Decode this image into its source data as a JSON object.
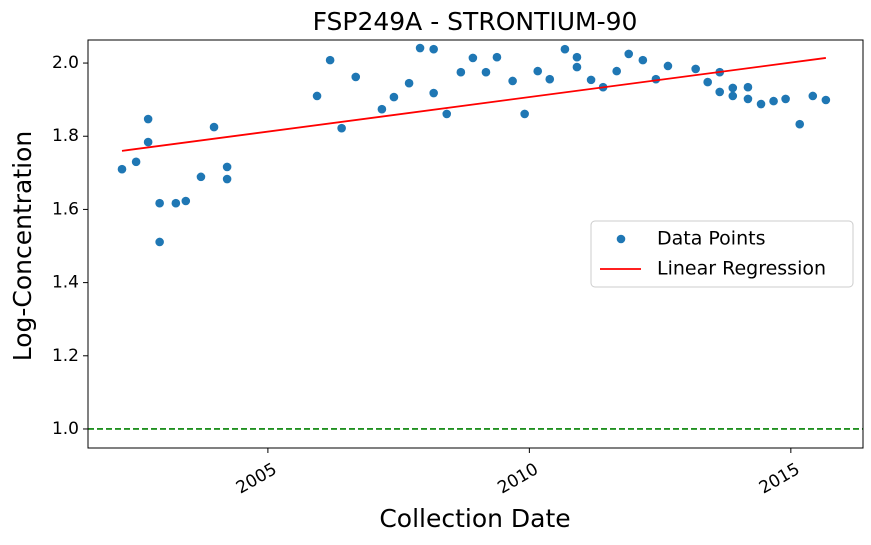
{
  "chart_data": {
    "type": "scatter",
    "title": "FSP249A - STRONTIUM-90",
    "xlabel": "Collection Date",
    "ylabel": "Log-Concentration",
    "xlim": [
      2001.56,
      2016.38
    ],
    "ylim": [
      0.948,
      2.063
    ],
    "xticks": [
      2005,
      2010,
      2015
    ],
    "yticks": [
      {
        "value": 1.0,
        "label": "1.0"
      },
      1.2,
      1.4,
      1.6,
      1.8,
      {
        "value": 2.0,
        "label": "2.0"
      }
    ],
    "legend": "center right",
    "hline": {
      "value": 1.0,
      "color": "#008000"
    },
    "series": [
      {
        "name": "Data Points",
        "type": "scatter",
        "color": "#1f77b4",
        "x": [
          2002.21,
          2002.48,
          2002.71,
          2002.71,
          2002.93,
          2002.93,
          2003.24,
          2003.43,
          2003.72,
          2003.97,
          2004.22,
          2004.22,
          2005.94,
          2006.19,
          2006.41,
          2006.68,
          2007.18,
          2007.41,
          2007.7,
          2007.91,
          2008.17,
          2008.17,
          2008.42,
          2008.69,
          2008.92,
          2009.17,
          2009.38,
          2009.68,
          2009.91,
          2010.16,
          2010.39,
          2010.68,
          2010.91,
          2010.91,
          2011.18,
          2011.41,
          2011.67,
          2011.9,
          2012.17,
          2012.42,
          2012.65,
          2013.18,
          2013.41,
          2013.64,
          2013.64,
          2013.89,
          2013.89,
          2014.18,
          2014.18,
          2014.43,
          2014.67,
          2014.9,
          2015.17,
          2015.42,
          2015.67
        ],
        "values": [
          1.71,
          1.73,
          1.847,
          1.784,
          1.617,
          1.511,
          1.617,
          1.623,
          1.689,
          1.825,
          1.716,
          1.683,
          1.91,
          2.008,
          1.822,
          1.962,
          1.874,
          1.907,
          1.945,
          2.041,
          2.038,
          1.918,
          1.861,
          1.975,
          2.014,
          1.975,
          2.016,
          1.951,
          1.861,
          1.978,
          1.956,
          2.038,
          2.016,
          1.989,
          1.954,
          1.934,
          1.978,
          2.025,
          2.008,
          1.956,
          1.992,
          1.984,
          1.948,
          1.975,
          1.921,
          1.932,
          1.91,
          1.934,
          1.902,
          1.888,
          1.896,
          1.902,
          1.833,
          1.91,
          1.899
        ]
      },
      {
        "name": "Linear Regression",
        "type": "line",
        "color": "#ff0000",
        "x": [
          2002.21,
          2015.67
        ],
        "values": [
          1.76,
          2.014
        ]
      }
    ]
  }
}
